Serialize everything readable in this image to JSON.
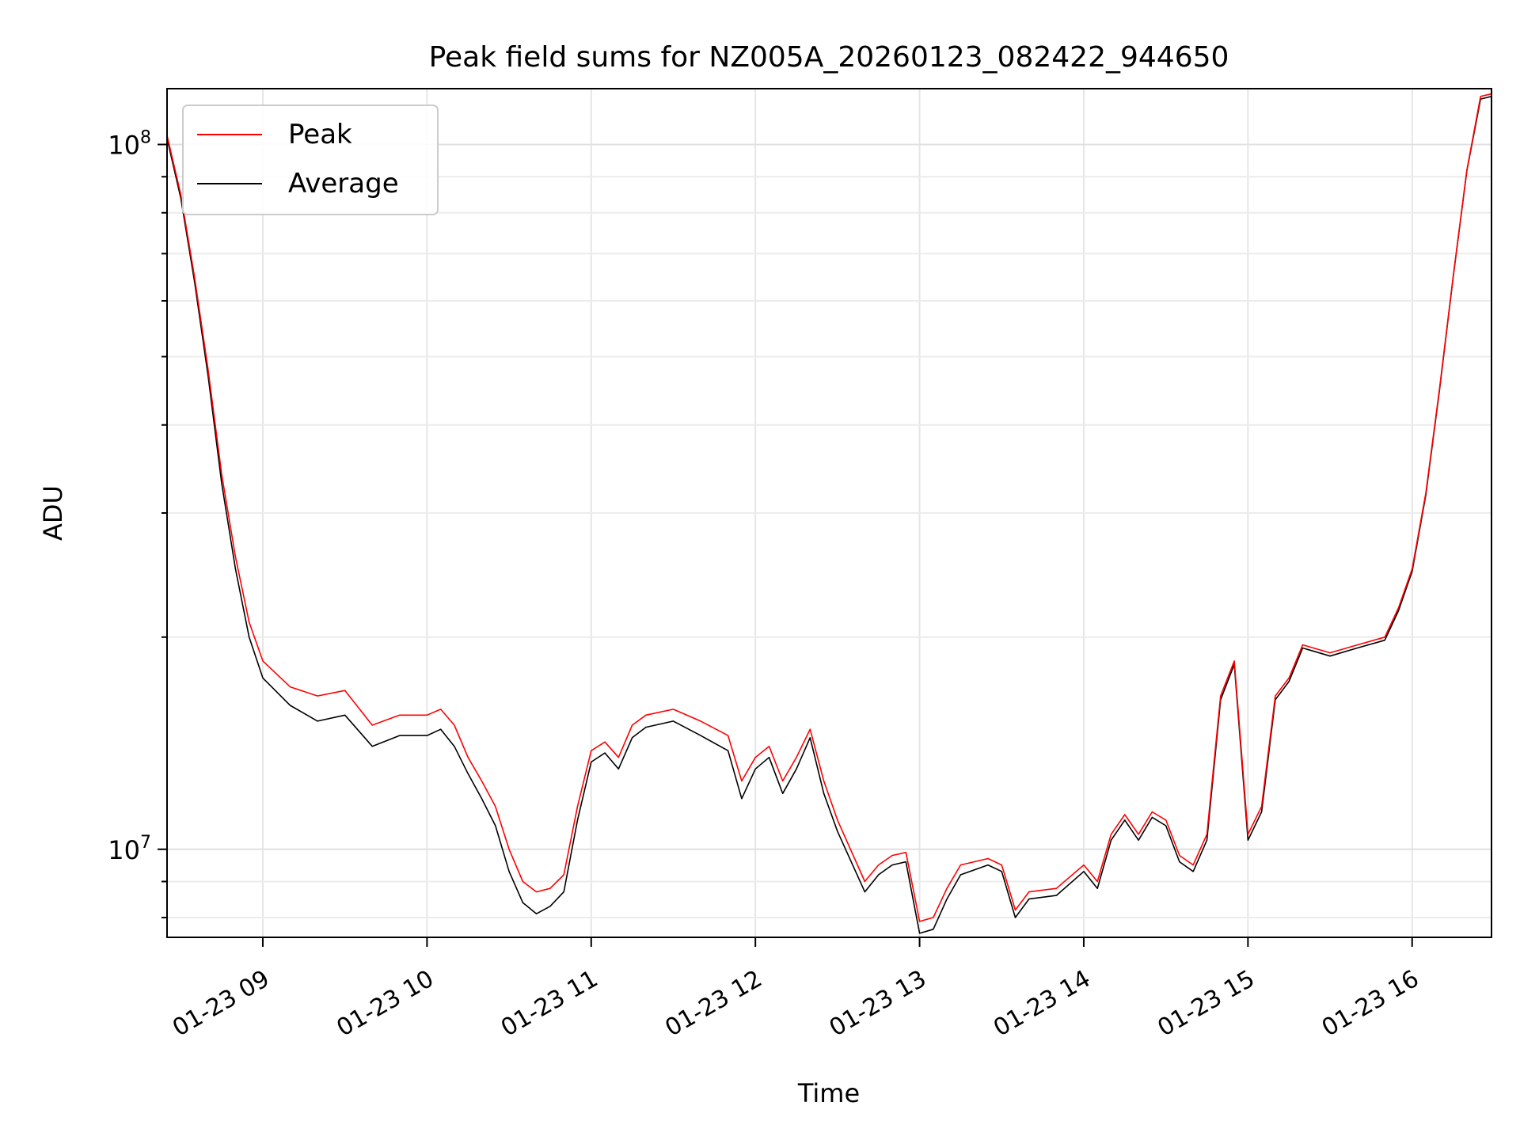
{
  "chart_data": {
    "type": "line",
    "title": "Peak field sums for NZ005A_20260123_082422_944650",
    "xlabel": "Time",
    "ylabel": "ADU",
    "x_range": [
      "2026-01-23T08:25:00",
      "2026-01-23T16:29:00"
    ],
    "y_range": [
      7500000,
      120000000
    ],
    "y_scale": "log",
    "grid": true,
    "legend_position": "top-left",
    "x_ticks": [
      {
        "time": "2026-01-23T09:00:00",
        "label": "01-23 09"
      },
      {
        "time": "2026-01-23T10:00:00",
        "label": "01-23 10"
      },
      {
        "time": "2026-01-23T11:00:00",
        "label": "01-23 11"
      },
      {
        "time": "2026-01-23T12:00:00",
        "label": "01-23 12"
      },
      {
        "time": "2026-01-23T13:00:00",
        "label": "01-23 13"
      },
      {
        "time": "2026-01-23T14:00:00",
        "label": "01-23 14"
      },
      {
        "time": "2026-01-23T15:00:00",
        "label": "01-23 15"
      },
      {
        "time": "2026-01-23T16:00:00",
        "label": "01-23 16"
      }
    ],
    "y_major_ticks": [
      {
        "value": 10000000,
        "base": "10",
        "exp": "7"
      },
      {
        "value": 100000000,
        "base": "10",
        "exp": "8"
      }
    ],
    "y_minor_ticks": [
      8000000,
      9000000,
      20000000,
      30000000,
      40000000,
      50000000,
      60000000,
      70000000,
      80000000,
      90000000
    ],
    "series": [
      {
        "name": "Peak",
        "color": "#ff0000",
        "points": [
          [
            "2026-01-23T08:25:00",
            103000000
          ],
          [
            "2026-01-23T08:30:00",
            85000000
          ],
          [
            "2026-01-23T08:35:00",
            65000000
          ],
          [
            "2026-01-23T08:40:00",
            48000000
          ],
          [
            "2026-01-23T08:45:00",
            34000000
          ],
          [
            "2026-01-23T08:50:00",
            26000000
          ],
          [
            "2026-01-23T08:55:00",
            21000000
          ],
          [
            "2026-01-23T09:00:00",
            18500000
          ],
          [
            "2026-01-23T09:10:00",
            17000000
          ],
          [
            "2026-01-23T09:20:00",
            16500000
          ],
          [
            "2026-01-23T09:30:00",
            16800000
          ],
          [
            "2026-01-23T09:40:00",
            15000000
          ],
          [
            "2026-01-23T09:50:00",
            15500000
          ],
          [
            "2026-01-23T10:00:00",
            15500000
          ],
          [
            "2026-01-23T10:05:00",
            15800000
          ],
          [
            "2026-01-23T10:10:00",
            15000000
          ],
          [
            "2026-01-23T10:15:00",
            13500000
          ],
          [
            "2026-01-23T10:20:00",
            12500000
          ],
          [
            "2026-01-23T10:25:00",
            11500000
          ],
          [
            "2026-01-23T10:30:00",
            10000000
          ],
          [
            "2026-01-23T10:35:00",
            9000000
          ],
          [
            "2026-01-23T10:40:00",
            8700000
          ],
          [
            "2026-01-23T10:45:00",
            8800000
          ],
          [
            "2026-01-23T10:50:00",
            9200000
          ],
          [
            "2026-01-23T10:55:00",
            11500000
          ],
          [
            "2026-01-23T11:00:00",
            13800000
          ],
          [
            "2026-01-23T11:05:00",
            14200000
          ],
          [
            "2026-01-23T11:10:00",
            13500000
          ],
          [
            "2026-01-23T11:15:00",
            15000000
          ],
          [
            "2026-01-23T11:20:00",
            15500000
          ],
          [
            "2026-01-23T11:30:00",
            15800000
          ],
          [
            "2026-01-23T11:40:00",
            15200000
          ],
          [
            "2026-01-23T11:50:00",
            14500000
          ],
          [
            "2026-01-23T11:55:00",
            12500000
          ],
          [
            "2026-01-23T12:00:00",
            13500000
          ],
          [
            "2026-01-23T12:05:00",
            14000000
          ],
          [
            "2026-01-23T12:10:00",
            12500000
          ],
          [
            "2026-01-23T12:15:00",
            13500000
          ],
          [
            "2026-01-23T12:20:00",
            14800000
          ],
          [
            "2026-01-23T12:25:00",
            12500000
          ],
          [
            "2026-01-23T12:30:00",
            11000000
          ],
          [
            "2026-01-23T12:40:00",
            9000000
          ],
          [
            "2026-01-23T12:45:00",
            9500000
          ],
          [
            "2026-01-23T12:50:00",
            9800000
          ],
          [
            "2026-01-23T12:55:00",
            9900000
          ],
          [
            "2026-01-23T13:00:00",
            7900000
          ],
          [
            "2026-01-23T13:05:00",
            8000000
          ],
          [
            "2026-01-23T13:10:00",
            8800000
          ],
          [
            "2026-01-23T13:15:00",
            9500000
          ],
          [
            "2026-01-23T13:25:00",
            9700000
          ],
          [
            "2026-01-23T13:30:00",
            9500000
          ],
          [
            "2026-01-23T13:35:00",
            8200000
          ],
          [
            "2026-01-23T13:40:00",
            8700000
          ],
          [
            "2026-01-23T13:50:00",
            8800000
          ],
          [
            "2026-01-23T14:00:00",
            9500000
          ],
          [
            "2026-01-23T14:05:00",
            9000000
          ],
          [
            "2026-01-23T14:10:00",
            10500000
          ],
          [
            "2026-01-23T14:15:00",
            11200000
          ],
          [
            "2026-01-23T14:20:00",
            10500000
          ],
          [
            "2026-01-23T14:25:00",
            11300000
          ],
          [
            "2026-01-23T14:30:00",
            11000000
          ],
          [
            "2026-01-23T14:35:00",
            9800000
          ],
          [
            "2026-01-23T14:40:00",
            9500000
          ],
          [
            "2026-01-23T14:45:00",
            10500000
          ],
          [
            "2026-01-23T14:50:00",
            16500000
          ],
          [
            "2026-01-23T14:55:00",
            18500000
          ],
          [
            "2026-01-23T15:00:00",
            10500000
          ],
          [
            "2026-01-23T15:05:00",
            11500000
          ],
          [
            "2026-01-23T15:10:00",
            16500000
          ],
          [
            "2026-01-23T15:15:00",
            17500000
          ],
          [
            "2026-01-23T15:20:00",
            19500000
          ],
          [
            "2026-01-23T15:30:00",
            19000000
          ],
          [
            "2026-01-23T15:40:00",
            19500000
          ],
          [
            "2026-01-23T15:50:00",
            20000000
          ],
          [
            "2026-01-23T15:55:00",
            22000000
          ],
          [
            "2026-01-23T16:00:00",
            25000000
          ],
          [
            "2026-01-23T16:05:00",
            32000000
          ],
          [
            "2026-01-23T16:10:00",
            45000000
          ],
          [
            "2026-01-23T16:15:00",
            65000000
          ],
          [
            "2026-01-23T16:20:00",
            92000000
          ],
          [
            "2026-01-23T16:25:00",
            117000000
          ],
          [
            "2026-01-23T16:29:00",
            118000000
          ]
        ]
      },
      {
        "name": "Average",
        "color": "#000000",
        "points": [
          [
            "2026-01-23T08:25:00",
            102000000
          ],
          [
            "2026-01-23T08:30:00",
            84000000
          ],
          [
            "2026-01-23T08:35:00",
            64000000
          ],
          [
            "2026-01-23T08:40:00",
            47000000
          ],
          [
            "2026-01-23T08:45:00",
            33000000
          ],
          [
            "2026-01-23T08:50:00",
            25000000
          ],
          [
            "2026-01-23T08:55:00",
            20000000
          ],
          [
            "2026-01-23T09:00:00",
            17500000
          ],
          [
            "2026-01-23T09:10:00",
            16000000
          ],
          [
            "2026-01-23T09:20:00",
            15200000
          ],
          [
            "2026-01-23T09:30:00",
            15500000
          ],
          [
            "2026-01-23T09:40:00",
            14000000
          ],
          [
            "2026-01-23T09:50:00",
            14500000
          ],
          [
            "2026-01-23T10:00:00",
            14500000
          ],
          [
            "2026-01-23T10:05:00",
            14800000
          ],
          [
            "2026-01-23T10:10:00",
            14000000
          ],
          [
            "2026-01-23T10:15:00",
            12800000
          ],
          [
            "2026-01-23T10:20:00",
            11800000
          ],
          [
            "2026-01-23T10:25:00",
            10800000
          ],
          [
            "2026-01-23T10:30:00",
            9300000
          ],
          [
            "2026-01-23T10:35:00",
            8400000
          ],
          [
            "2026-01-23T10:40:00",
            8100000
          ],
          [
            "2026-01-23T10:45:00",
            8300000
          ],
          [
            "2026-01-23T10:50:00",
            8700000
          ],
          [
            "2026-01-23T10:55:00",
            11000000
          ],
          [
            "2026-01-23T11:00:00",
            13300000
          ],
          [
            "2026-01-23T11:05:00",
            13700000
          ],
          [
            "2026-01-23T11:10:00",
            13000000
          ],
          [
            "2026-01-23T11:15:00",
            14400000
          ],
          [
            "2026-01-23T11:20:00",
            14900000
          ],
          [
            "2026-01-23T11:30:00",
            15200000
          ],
          [
            "2026-01-23T11:40:00",
            14500000
          ],
          [
            "2026-01-23T11:50:00",
            13800000
          ],
          [
            "2026-01-23T11:55:00",
            11800000
          ],
          [
            "2026-01-23T12:00:00",
            13000000
          ],
          [
            "2026-01-23T12:05:00",
            13500000
          ],
          [
            "2026-01-23T12:10:00",
            12000000
          ],
          [
            "2026-01-23T12:15:00",
            13000000
          ],
          [
            "2026-01-23T12:20:00",
            14400000
          ],
          [
            "2026-01-23T12:25:00",
            12000000
          ],
          [
            "2026-01-23T12:30:00",
            10600000
          ],
          [
            "2026-01-23T12:40:00",
            8700000
          ],
          [
            "2026-01-23T12:45:00",
            9200000
          ],
          [
            "2026-01-23T12:50:00",
            9500000
          ],
          [
            "2026-01-23T12:55:00",
            9600000
          ],
          [
            "2026-01-23T13:00:00",
            7600000
          ],
          [
            "2026-01-23T13:05:00",
            7700000
          ],
          [
            "2026-01-23T13:10:00",
            8500000
          ],
          [
            "2026-01-23T13:15:00",
            9200000
          ],
          [
            "2026-01-23T13:25:00",
            9500000
          ],
          [
            "2026-01-23T13:30:00",
            9300000
          ],
          [
            "2026-01-23T13:35:00",
            8000000
          ],
          [
            "2026-01-23T13:40:00",
            8500000
          ],
          [
            "2026-01-23T13:50:00",
            8600000
          ],
          [
            "2026-01-23T14:00:00",
            9300000
          ],
          [
            "2026-01-23T14:05:00",
            8800000
          ],
          [
            "2026-01-23T14:10:00",
            10300000
          ],
          [
            "2026-01-23T14:15:00",
            11000000
          ],
          [
            "2026-01-23T14:20:00",
            10300000
          ],
          [
            "2026-01-23T14:25:00",
            11100000
          ],
          [
            "2026-01-23T14:30:00",
            10800000
          ],
          [
            "2026-01-23T14:35:00",
            9600000
          ],
          [
            "2026-01-23T14:40:00",
            9300000
          ],
          [
            "2026-01-23T14:45:00",
            10300000
          ],
          [
            "2026-01-23T14:50:00",
            16300000
          ],
          [
            "2026-01-23T14:55:00",
            18300000
          ],
          [
            "2026-01-23T15:00:00",
            10300000
          ],
          [
            "2026-01-23T15:05:00",
            11300000
          ],
          [
            "2026-01-23T15:10:00",
            16300000
          ],
          [
            "2026-01-23T15:15:00",
            17300000
          ],
          [
            "2026-01-23T15:20:00",
            19300000
          ],
          [
            "2026-01-23T15:30:00",
            18800000
          ],
          [
            "2026-01-23T15:40:00",
            19300000
          ],
          [
            "2026-01-23T15:50:00",
            19800000
          ],
          [
            "2026-01-23T15:55:00",
            21800000
          ],
          [
            "2026-01-23T16:00:00",
            24800000
          ],
          [
            "2026-01-23T16:05:00",
            31800000
          ],
          [
            "2026-01-23T16:10:00",
            44800000
          ],
          [
            "2026-01-23T16:15:00",
            64800000
          ],
          [
            "2026-01-23T16:20:00",
            91800000
          ],
          [
            "2026-01-23T16:25:00",
            116000000
          ],
          [
            "2026-01-23T16:29:00",
            117000000
          ]
        ]
      }
    ]
  }
}
